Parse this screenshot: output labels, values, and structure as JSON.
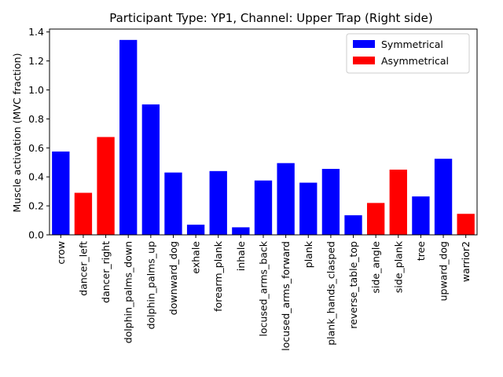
{
  "chart_data": {
    "type": "bar",
    "title": "Participant Type: YP1, Channel: Upper Trap (Right side)",
    "xlabel": "",
    "ylabel": "Muscle activation (MVC fraction)",
    "ylim": [
      0,
      1.42
    ],
    "yticks": [
      0.0,
      0.2,
      0.4,
      0.6,
      0.8,
      1.0,
      1.2,
      1.4
    ],
    "ytick_labels": [
      "0.0",
      "0.2",
      "0.4",
      "0.6",
      "0.8",
      "1.0",
      "1.2",
      "1.4"
    ],
    "grid": false,
    "legend_position": "top-right",
    "legend": [
      {
        "name": "Symmetrical",
        "color": "#0000ff"
      },
      {
        "name": "Asymmetrical",
        "color": "#ff0000"
      }
    ],
    "categories": [
      "crow",
      "dancer_left",
      "dancer_right",
      "dolphin_palms_down",
      "dolphin_palms_up",
      "downward_dog",
      "exhale",
      "forearm_plank",
      "inhale",
      "locused_arms_back",
      "locused_arms_forward",
      "plank",
      "plank_hands_clasped",
      "reverse_table_top",
      "side_angle",
      "side_plank",
      "tree",
      "upward_dog",
      "warrior2"
    ],
    "values": [
      0.575,
      0.29,
      0.675,
      1.345,
      0.9,
      0.43,
      0.07,
      0.44,
      0.052,
      0.375,
      0.495,
      0.36,
      0.455,
      0.135,
      0.22,
      0.45,
      0.265,
      0.525,
      0.145
    ],
    "groups": [
      "Symmetrical",
      "Asymmetrical",
      "Asymmetrical",
      "Symmetrical",
      "Symmetrical",
      "Symmetrical",
      "Symmetrical",
      "Symmetrical",
      "Symmetrical",
      "Symmetrical",
      "Symmetrical",
      "Symmetrical",
      "Symmetrical",
      "Symmetrical",
      "Asymmetrical",
      "Asymmetrical",
      "Symmetrical",
      "Symmetrical",
      "Asymmetrical"
    ]
  }
}
